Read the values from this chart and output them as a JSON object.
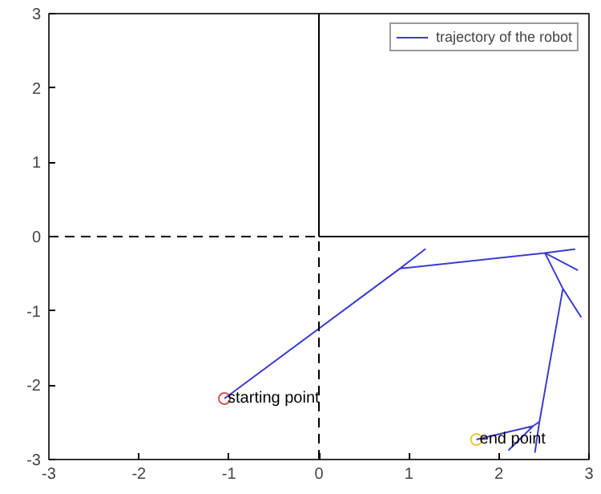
{
  "chart_data": {
    "type": "line",
    "xlim": [
      -3,
      3
    ],
    "ylim": [
      -3,
      3
    ],
    "xticks": [
      -3,
      -2,
      -1,
      0,
      1,
      2,
      3
    ],
    "yticks": [
      -3,
      -2,
      -1,
      0,
      1,
      2,
      3
    ],
    "grid": false,
    "legend": "top right",
    "series": [
      {
        "name": "trajectory of the robot",
        "color": "#3b3bd1",
        "line_style": "solid",
        "x": [
          -1.05,
          0.9,
          1.18,
          0.9,
          2.51,
          2.84,
          2.51,
          2.87,
          2.51,
          2.71,
          2.91,
          2.71,
          2.45,
          2.4,
          2.45,
          2.38,
          2.11,
          2.38,
          1.75
        ],
        "values": [
          -2.18,
          -0.43,
          -0.17,
          -0.43,
          -0.22,
          -0.17,
          -0.22,
          -0.45,
          -0.22,
          -0.7,
          -1.08,
          -0.7,
          -2.49,
          -2.9,
          -2.49,
          -2.55,
          -2.87,
          -2.55,
          -2.73
        ]
      },
      {
        "color": "#000000",
        "line_style": "dashed",
        "x": [
          -3,
          0
        ],
        "values": [
          0,
          0
        ]
      },
      {
        "color": "#000000",
        "line_style": "solid",
        "x": [
          0,
          3
        ],
        "values": [
          0,
          0
        ]
      },
      {
        "color": "#000000",
        "line_style": "dashed",
        "x": [
          0,
          0
        ],
        "values": [
          -3,
          0
        ]
      },
      {
        "color": "#000000",
        "line_style": "solid",
        "x": [
          0,
          0
        ],
        "values": [
          0,
          3
        ]
      },
      {
        "color": "#d9534f",
        "type": "scatter",
        "marker": "circle",
        "x": [
          -1.05
        ],
        "values": [
          -2.18
        ]
      },
      {
        "color": "#e8c840",
        "type": "scatter",
        "marker": "circle",
        "x": [
          1.75
        ],
        "values": [
          -2.73
        ]
      }
    ],
    "annotations": [
      {
        "text": "starting point",
        "x": -1.05,
        "y": -2.18
      },
      {
        "text": "end point",
        "x": 1.75,
        "y": -2.73
      }
    ]
  }
}
